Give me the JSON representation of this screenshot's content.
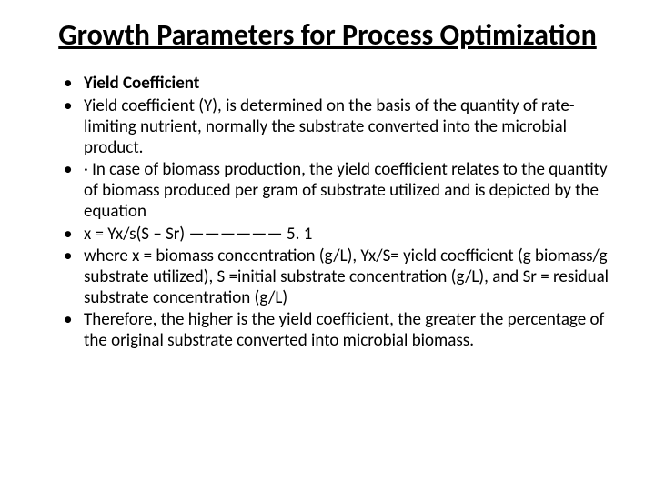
{
  "title": "Growth Parameters for Process Optimization",
  "bullets": [
    {
      "text": "Yield Coefficient",
      "bold": true
    },
    {
      "text": "Yield coefficient (Y), is determined on the basis of the quantity of rate- limiting nutrient, normally the substrate converted into the microbial product.",
      "bold": false
    },
    {
      "text": "· In case of biomass production, the yield coefficient relates to the quantity of biomass produced per gram of substrate utilized and is depicted by the equation",
      "bold": false
    },
    {
      "text": "x = Yx/s(S – Sr) —————— 5. 1",
      "bold": false
    },
    {
      "text": "where x = biomass concentration (g/L), Yx/S= yield coefficient (g biomass/g substrate utilized), S =initial substrate concentration (g/L), and Sr = residual substrate concentration (g/L)",
      "bold": false
    },
    {
      "text": "Therefore, the higher is the yield coefficient, the greater the percentage of the original substrate converted into microbial biomass.",
      "bold": false
    }
  ],
  "colors": {
    "background": "#ffffff",
    "text": "#000000"
  },
  "typography": {
    "title_fontsize": 32,
    "body_fontsize": 19,
    "font_family": "Calibri"
  }
}
